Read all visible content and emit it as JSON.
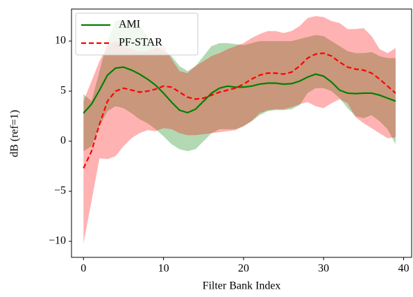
{
  "chart_data": {
    "type": "line",
    "x_label": "Filter Bank Index",
    "y_label": "dB (ref=1)",
    "x": [
      0,
      1,
      2,
      3,
      4,
      5,
      6,
      7,
      8,
      9,
      10,
      11,
      12,
      13,
      14,
      15,
      16,
      17,
      18,
      19,
      20,
      21,
      22,
      23,
      24,
      25,
      26,
      27,
      28,
      29,
      30,
      31,
      32,
      33,
      34,
      35,
      36,
      37,
      38,
      39
    ],
    "xlim": [
      -1.5,
      41
    ],
    "ylim": [
      -11.6,
      13.2
    ],
    "xticks": [
      0,
      10,
      20,
      30,
      40
    ],
    "yticks": [
      {
        "value": -10,
        "label": "−10"
      },
      {
        "value": -5,
        "label": "−5"
      },
      0,
      5,
      10
    ],
    "legend": "upper left",
    "series": [
      {
        "name": "AMI",
        "color": "#008000",
        "line_style": "solid",
        "fill_color": "rgba(0,128,0,0.3)",
        "values": [
          2.8,
          3.7,
          5.1,
          6.6,
          7.3,
          7.4,
          7.1,
          6.7,
          6.2,
          5.6,
          4.8,
          3.9,
          3.1,
          2.85,
          3.2,
          4.0,
          4.8,
          5.3,
          5.5,
          5.4,
          5.4,
          5.5,
          5.7,
          5.8,
          5.8,
          5.7,
          5.75,
          6.0,
          6.4,
          6.7,
          6.5,
          5.9,
          5.1,
          4.8,
          4.75,
          4.8,
          4.8,
          4.6,
          4.3,
          4.0
        ],
        "upper": [
          4.7,
          4.0,
          7,
          10,
          12,
          12.1,
          12,
          11.5,
          10.5,
          9.5,
          9,
          8.5,
          7.5,
          7,
          7.5,
          8.5,
          9.5,
          9.8,
          9.8,
          9.7,
          9.6,
          9.8,
          10,
          10,
          10,
          10,
          10,
          10.2,
          10.4,
          10.6,
          10.5,
          10,
          9.5,
          9,
          8.8,
          8.8,
          8.9,
          8.5,
          8.3,
          8.3
        ],
        "lower": [
          -1,
          -0.5,
          1.5,
          3,
          3.5,
          3.3,
          2.8,
          2.2,
          1.8,
          1.2,
          0.5,
          -0.3,
          -0.8,
          -1.0,
          -0.8,
          0,
          0.8,
          1.2,
          1.2,
          1.2,
          1.5,
          2,
          2.6,
          3,
          3.1,
          3.1,
          3.2,
          3.6,
          4.8,
          5.3,
          5.3,
          5.0,
          4.3,
          3.3,
          2.5,
          2.3,
          2.6,
          2.0,
          1.2,
          -0.3
        ]
      },
      {
        "name": "PF-STAR",
        "color": "#ff0000",
        "line_style": "dashed",
        "fill_color": "rgba(255,0,0,0.3)",
        "values": [
          -2.7,
          -1.0,
          1.7,
          4.0,
          5.0,
          5.3,
          5.1,
          4.9,
          5.0,
          5.2,
          5.5,
          5.4,
          4.9,
          4.4,
          4.2,
          4.3,
          4.6,
          4.9,
          5.1,
          5.3,
          5.7,
          6.2,
          6.6,
          6.8,
          6.8,
          6.7,
          6.9,
          7.5,
          8.3,
          8.7,
          8.8,
          8.5,
          7.9,
          7.4,
          7.2,
          7.1,
          6.8,
          6.2,
          5.5,
          4.8
        ],
        "upper": [
          4,
          6,
          8,
          9.5,
          10,
          9.5,
          9.2,
          9,
          9,
          9.3,
          9.5,
          8.2,
          7,
          6.8,
          7.5,
          8,
          8.5,
          8.8,
          9.2,
          9.5,
          9.8,
          10.3,
          10.7,
          11,
          11,
          10.8,
          11,
          11.5,
          12.3,
          12.5,
          12.4,
          12,
          11.8,
          11.2,
          11.2,
          11.3,
          10.5,
          9.2,
          8.8,
          9.3
        ],
        "lower": [
          -10.2,
          -6,
          -1.7,
          -1.8,
          -1.5,
          -0.5,
          0.3,
          0.8,
          1.1,
          1.0,
          1.3,
          1.2,
          0.8,
          0.6,
          0.6,
          0.7,
          0.8,
          0.9,
          1.0,
          1.1,
          1.5,
          2,
          2.8,
          3.1,
          3.2,
          3.2,
          3.4,
          3.7,
          3.9,
          3.5,
          3.3,
          3.8,
          4.2,
          3.8,
          2.4,
          1.8,
          1.3,
          0.8,
          0.3,
          0.4
        ]
      }
    ]
  }
}
